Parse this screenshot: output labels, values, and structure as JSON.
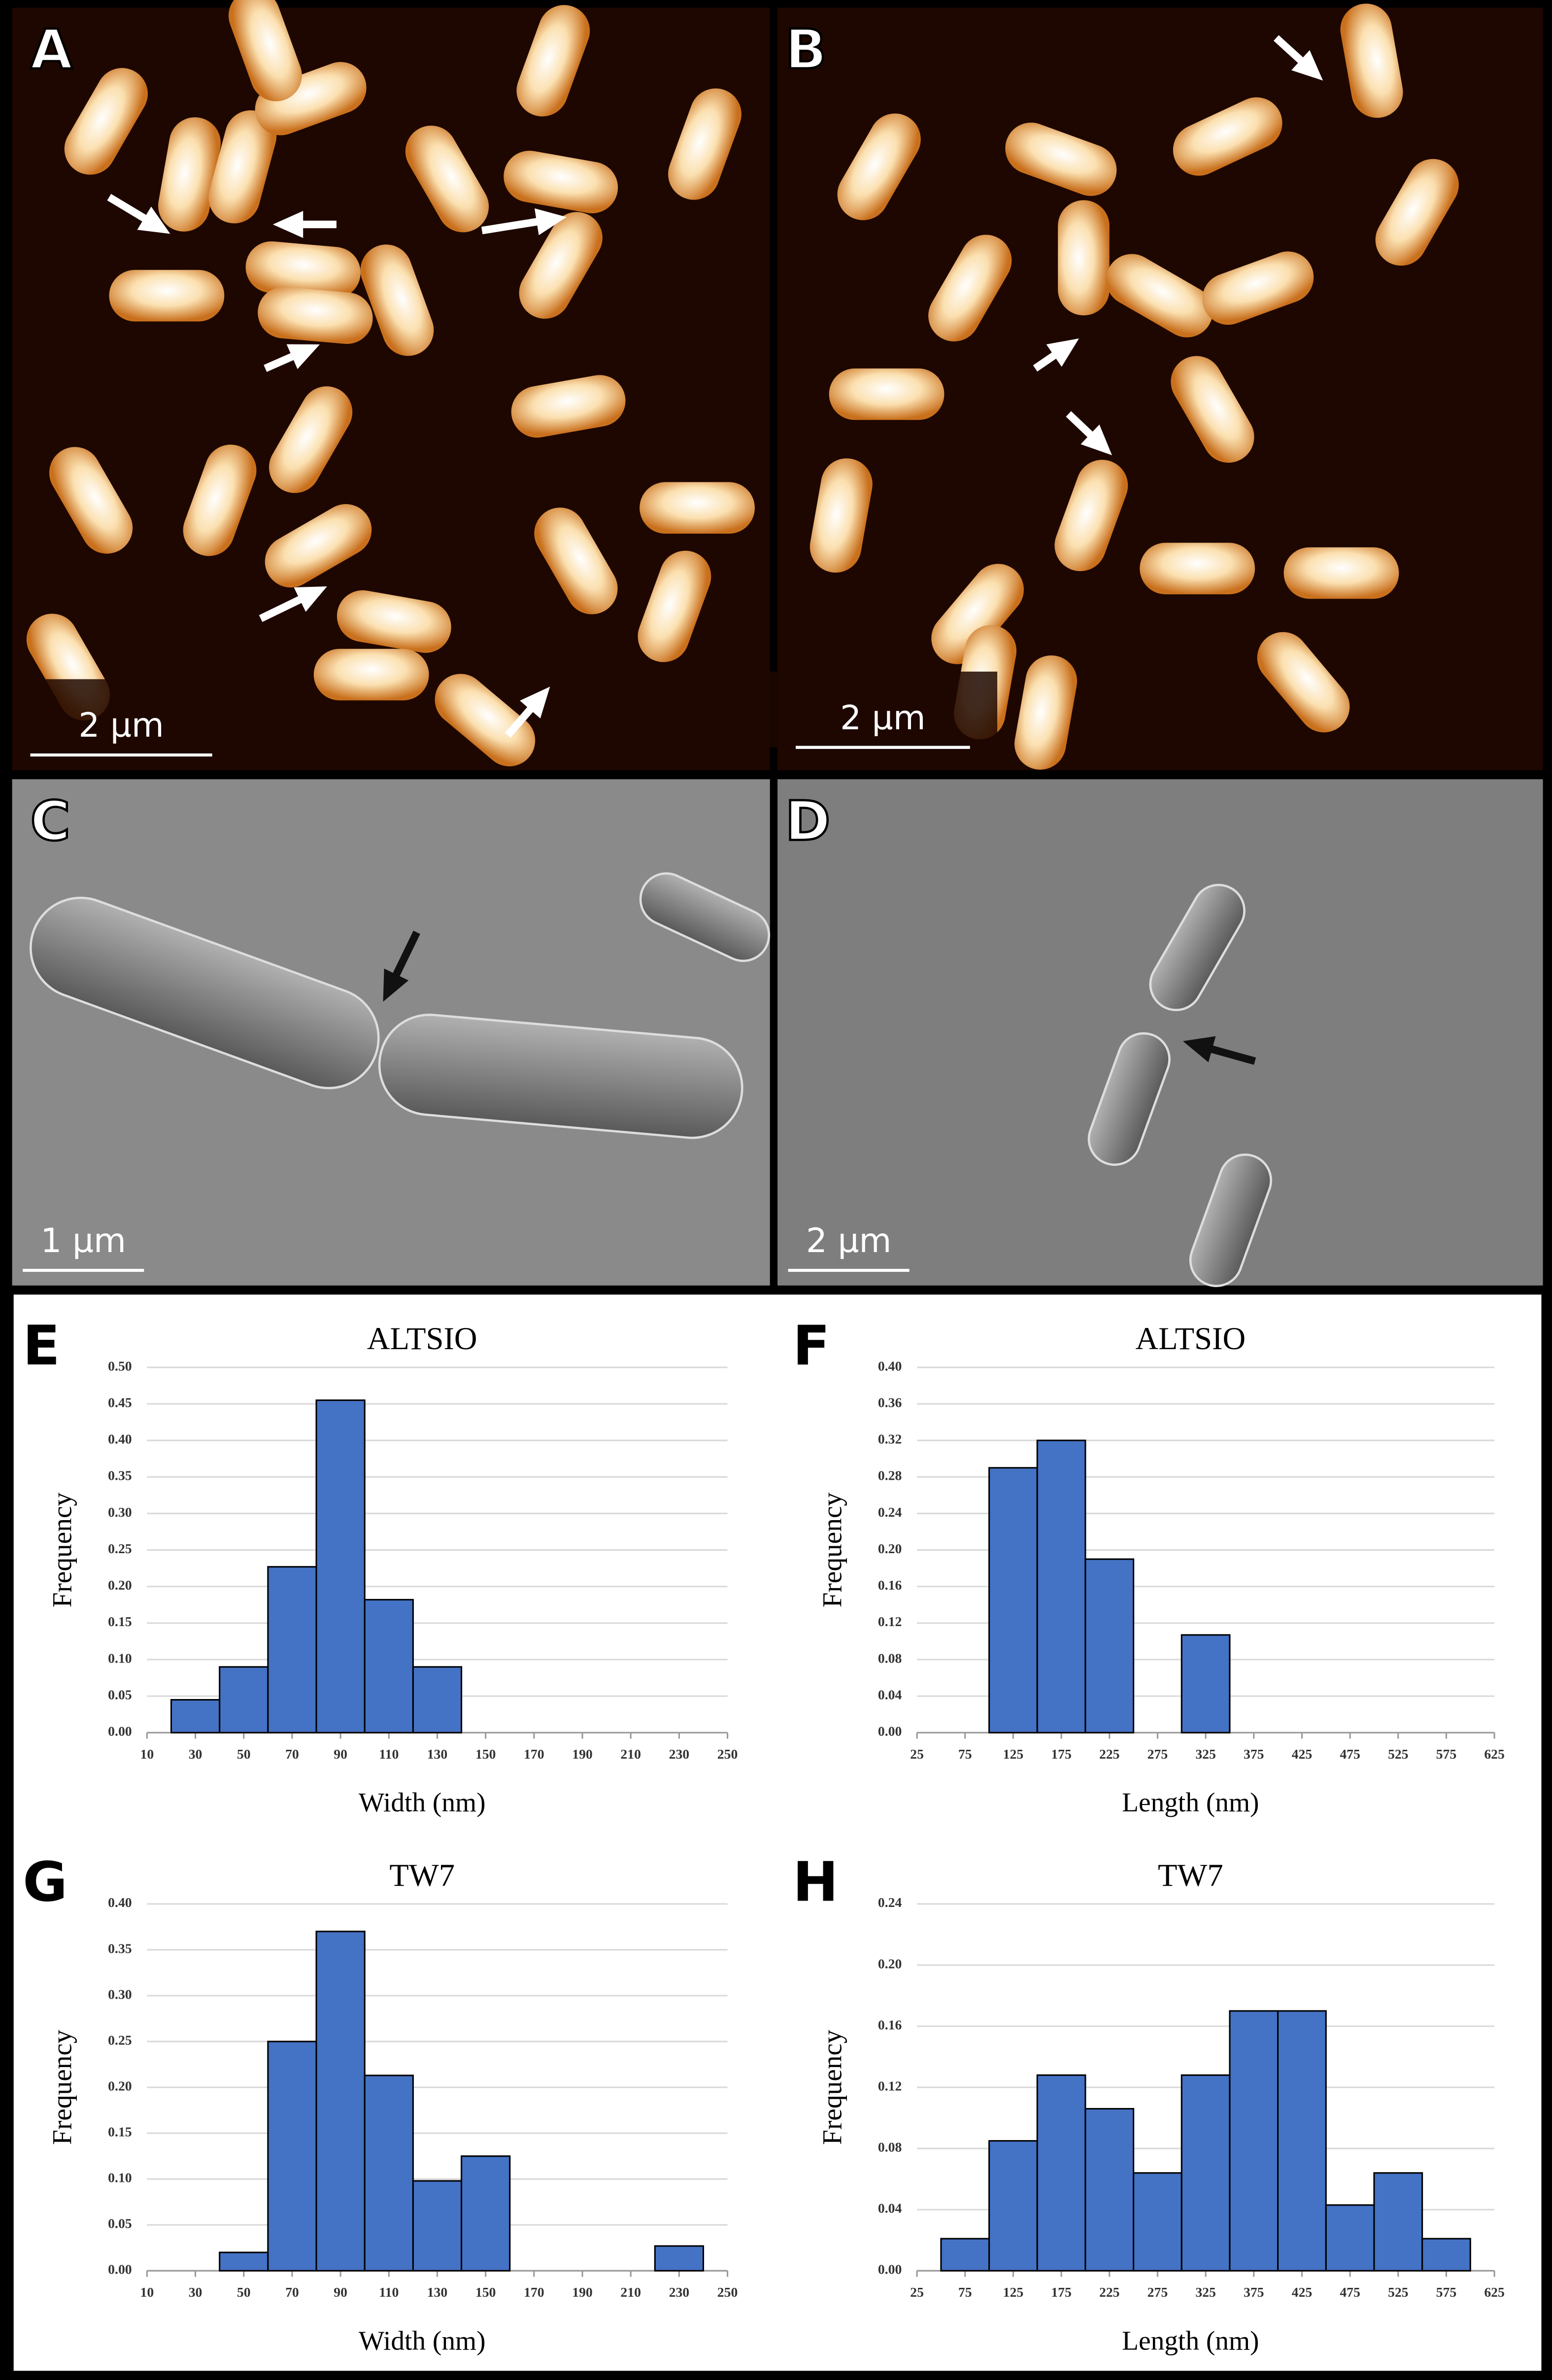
{
  "panels": [
    {
      "label": "A",
      "scale_bar": "2 µm"
    },
    {
      "label": "B",
      "scale_bar": "2 µm"
    },
    {
      "label": "C",
      "scale_bar": "1 µm"
    },
    {
      "label": "D",
      "scale_bar": "2 µm"
    }
  ],
  "chart_data": [
    {
      "type": "histogram",
      "panel_label": "E",
      "title": "ALTSIO",
      "xlabel": "Width (nm)",
      "ylabel": "Frequency",
      "color": "#4472c4",
      "bins": [
        20,
        40,
        60,
        80,
        100,
        120,
        140
      ],
      "counts": [
        0.045,
        0.09,
        0.227,
        0.455,
        0.182,
        0.09
      ],
      "xlim": [
        10,
        250
      ],
      "xticks": [
        10,
        30,
        50,
        70,
        90,
        110,
        130,
        150,
        170,
        190,
        210,
        230,
        250
      ],
      "ylim": [
        0,
        0.5
      ],
      "yticks": [
        {
          "value": 0,
          "label": "0.00"
        },
        {
          "value": 0.05,
          "label": "0.05"
        },
        {
          "value": 0.1,
          "label": "0.10"
        },
        {
          "value": 0.15,
          "label": "0.15"
        },
        {
          "value": 0.2,
          "label": "0.20"
        },
        {
          "value": 0.25,
          "label": "0.25"
        },
        {
          "value": 0.3,
          "label": "0.30"
        },
        {
          "value": 0.35,
          "label": "0.35"
        },
        {
          "value": 0.4,
          "label": "0.40"
        },
        {
          "value": 0.45,
          "label": "0.45"
        },
        {
          "value": 0.5,
          "label": "0.50"
        }
      ],
      "grid": true
    },
    {
      "type": "histogram",
      "panel_label": "F",
      "title": "ALTSIO",
      "xlabel": "Length (nm)",
      "ylabel": "Frequency",
      "color": "#4472c4",
      "bins": [
        100,
        150,
        200,
        250,
        300,
        350
      ],
      "counts": [
        0.29,
        0.32,
        0.19,
        0,
        0.107
      ],
      "xlim": [
        25,
        625
      ],
      "xticks": [
        25,
        75,
        125,
        175,
        225,
        275,
        325,
        375,
        425,
        475,
        525,
        575,
        625
      ],
      "ylim": [
        0,
        0.4
      ],
      "yticks": [
        {
          "value": 0,
          "label": "0.00"
        },
        {
          "value": 0.04,
          "label": "0.04"
        },
        {
          "value": 0.08,
          "label": "0.08"
        },
        {
          "value": 0.12,
          "label": "0.12"
        },
        {
          "value": 0.16,
          "label": "0.16"
        },
        {
          "value": 0.2,
          "label": "0.20"
        },
        {
          "value": 0.24,
          "label": "0.24"
        },
        {
          "value": 0.28,
          "label": "0.28"
        },
        {
          "value": 0.32,
          "label": "0.32"
        },
        {
          "value": 0.36,
          "label": "0.36"
        },
        {
          "value": 0.4,
          "label": "0.40"
        }
      ],
      "grid": true
    },
    {
      "type": "histogram",
      "panel_label": "G",
      "title": "TW7",
      "xlabel": "Width (nm)",
      "ylabel": "Frequency",
      "color": "#4472c4",
      "bins": [
        40,
        60,
        80,
        100,
        120,
        140,
        160,
        180,
        200,
        220,
        240
      ],
      "counts": [
        0.02,
        0.25,
        0.37,
        0.213,
        0.098,
        0.125,
        0,
        0,
        0,
        0.027
      ],
      "xlim": [
        10,
        250
      ],
      "xticks": [
        10,
        30,
        50,
        70,
        90,
        110,
        130,
        150,
        170,
        190,
        210,
        230,
        250
      ],
      "ylim": [
        0,
        0.4
      ],
      "yticks": [
        {
          "value": 0,
          "label": "0.00"
        },
        {
          "value": 0.05,
          "label": "0.05"
        },
        {
          "value": 0.1,
          "label": "0.10"
        },
        {
          "value": 0.15,
          "label": "0.15"
        },
        {
          "value": 0.2,
          "label": "0.20"
        },
        {
          "value": 0.25,
          "label": "0.25"
        },
        {
          "value": 0.3,
          "label": "0.30"
        },
        {
          "value": 0.35,
          "label": "0.35"
        },
        {
          "value": 0.4,
          "label": "0.40"
        }
      ],
      "grid": true
    },
    {
      "type": "histogram",
      "panel_label": "H",
      "title": "TW7",
      "xlabel": "Length (nm)",
      "ylabel": "Frequency",
      "color": "#4472c4",
      "bins": [
        50,
        100,
        150,
        200,
        250,
        300,
        350,
        400,
        450,
        500,
        550,
        600
      ],
      "counts": [
        0.021,
        0.085,
        0.128,
        0.106,
        0.064,
        0.128,
        0.17,
        0.17,
        0.043,
        0.064,
        0.021
      ],
      "xlim": [
        25,
        625
      ],
      "xticks": [
        25,
        75,
        125,
        175,
        225,
        275,
        325,
        375,
        425,
        475,
        525,
        575,
        625
      ],
      "ylim": [
        0,
        0.24
      ],
      "yticks": [
        {
          "value": 0,
          "label": "0.00"
        },
        {
          "value": 0.04,
          "label": "0.04"
        },
        {
          "value": 0.08,
          "label": "0.08"
        },
        {
          "value": 0.12,
          "label": "0.12"
        },
        {
          "value": 0.16,
          "label": "0.16"
        },
        {
          "value": 0.2,
          "label": "0.20"
        },
        {
          "value": 0.24,
          "label": "0.24"
        }
      ],
      "grid": true
    }
  ]
}
